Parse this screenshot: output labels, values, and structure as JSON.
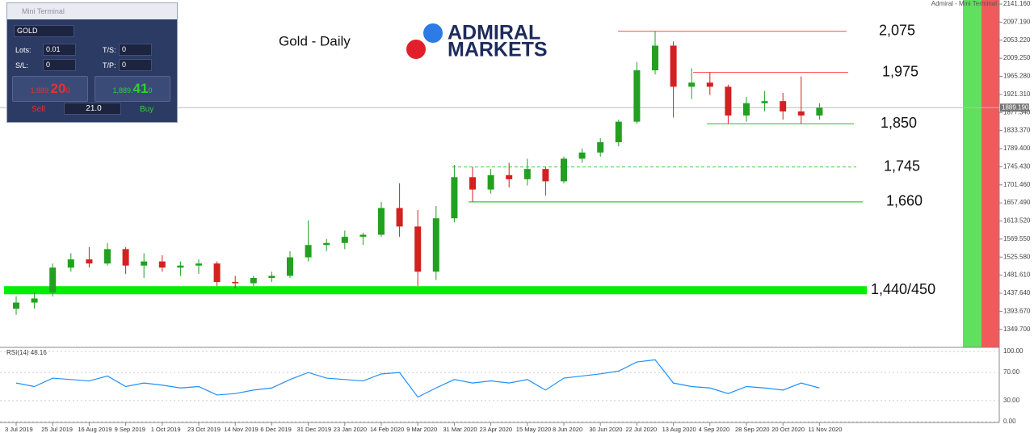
{
  "chart_data": {
    "type": "candlestick",
    "title": "Gold - Daily",
    "corner_caption": "Admiral - Mini Terminal",
    "categories": [
      "3 Jul 2019",
      null,
      "25 Jul 2019",
      null,
      "16 Aug 2019",
      null,
      "9 Sep 2019",
      null,
      "1 Oct 2019",
      null,
      "23 Oct 2019",
      null,
      "14 Nov 2019",
      null,
      "6 Dec 2019",
      null,
      "31 Dec 2019",
      null,
      "23 Jan 2020",
      null,
      "14 Feb 2020",
      null,
      "9 Mar 2020",
      null,
      "31 Mar 2020",
      null,
      "23 Apr 2020",
      null,
      "15 May 2020",
      null,
      "8 Jun 2020",
      null,
      "30 Jun 2020",
      null,
      "22 Jul 2020",
      null,
      "13 Aug 2020",
      null,
      "4 Sep 2020",
      null,
      "28 Sep 2020",
      null,
      "20 Oct 2020",
      null,
      "11 Nov 2020"
    ],
    "open": [
      1400,
      1415,
      1440,
      1500,
      1520,
      1510,
      1545,
      1505,
      1515,
      1500,
      1505,
      1510,
      1465,
      1462,
      1475,
      1480,
      1525,
      1555,
      1560,
      1575,
      1580,
      1645,
      1600,
      1490,
      1620,
      1720,
      1690,
      1725,
      1715,
      1740,
      1710,
      1765,
      1780,
      1805,
      1855,
      1980,
      2040,
      1940,
      1950,
      1940,
      1870,
      1900,
      1905,
      1880,
      1870
    ],
    "high": [
      1430,
      1440,
      1510,
      1535,
      1550,
      1560,
      1550,
      1535,
      1530,
      1515,
      1520,
      1515,
      1480,
      1480,
      1490,
      1540,
      1615,
      1570,
      1590,
      1585,
      1660,
      1705,
      1640,
      1650,
      1750,
      1745,
      1740,
      1755,
      1765,
      1745,
      1770,
      1790,
      1815,
      1860,
      2000,
      2075,
      2050,
      1985,
      1975,
      1945,
      1915,
      1930,
      1925,
      1965,
      1900
    ],
    "low": [
      1385,
      1400,
      1430,
      1490,
      1500,
      1505,
      1485,
      1475,
      1490,
      1480,
      1485,
      1455,
      1450,
      1455,
      1465,
      1475,
      1515,
      1540,
      1545,
      1555,
      1575,
      1575,
      1455,
      1470,
      1610,
      1660,
      1680,
      1695,
      1700,
      1675,
      1705,
      1755,
      1770,
      1795,
      1850,
      1970,
      1865,
      1910,
      1920,
      1850,
      1855,
      1880,
      1860,
      1850,
      1860
    ],
    "close": [
      1415,
      1425,
      1500,
      1520,
      1510,
      1545,
      1505,
      1515,
      1500,
      1505,
      1510,
      1465,
      1462,
      1475,
      1480,
      1525,
      1555,
      1560,
      1575,
      1580,
      1645,
      1600,
      1490,
      1620,
      1720,
      1690,
      1725,
      1715,
      1740,
      1710,
      1765,
      1780,
      1805,
      1855,
      1980,
      2040,
      1940,
      1950,
      1940,
      1870,
      1900,
      1905,
      1880,
      1870,
      1889
    ],
    "up_color": "#22a022",
    "down_color": "#d42020",
    "ylim": [
      1306,
      2151
    ],
    "yticks": [
      {
        "value": 2141.16,
        "label": "2141.160"
      },
      {
        "value": 2097.19,
        "label": "2097.190"
      },
      {
        "value": 2053.22,
        "label": "2053.220"
      },
      {
        "value": 2009.25,
        "label": "2009.250"
      },
      {
        "value": 1965.28,
        "label": "1965.280"
      },
      {
        "value": 1921.31,
        "label": "1921.310"
      },
      {
        "value": 1877.34,
        "label": "1877.340"
      },
      {
        "value": 1833.37,
        "label": "1833.370"
      },
      {
        "value": 1789.4,
        "label": "1789.400"
      },
      {
        "value": 1745.43,
        "label": "1745.430"
      },
      {
        "value": 1701.46,
        "label": "1701.460"
      },
      {
        "value": 1657.49,
        "label": "1657.490"
      },
      {
        "value": 1613.52,
        "label": "1613.520"
      },
      {
        "value": 1569.55,
        "label": "1569.550"
      },
      {
        "value": 1525.58,
        "label": "1525.580"
      },
      {
        "value": 1481.61,
        "label": "1481.610"
      },
      {
        "value": 1437.64,
        "label": "1437.640"
      },
      {
        "value": 1393.67,
        "label": "1393.670"
      },
      {
        "value": 1349.7,
        "label": "1349.700"
      }
    ],
    "last_price": {
      "value": 1889.19,
      "label": "1889.190"
    },
    "levels": [
      {
        "value": 2075,
        "label": "2,075",
        "color": "#ff5a5a",
        "line_style": "solid"
      },
      {
        "value": 1975,
        "label": "1,975",
        "color": "#ff5a5a",
        "line_style": "solid"
      },
      {
        "value": 1850,
        "label": "1,850",
        "color": "#33cc33",
        "line_style": "solid"
      },
      {
        "value": 1745,
        "label": "1,745",
        "color": "#66dd66",
        "line_style": "dashed"
      },
      {
        "value": 1660,
        "label": "1,660",
        "color": "#33cc33",
        "line_style": "solid"
      },
      {
        "value": 1445,
        "label": "1,440/450",
        "color": "#00ee00",
        "line_style": "band"
      }
    ],
    "rsi": {
      "title": "RSI(14) 48.16",
      "color": "#1e90ff",
      "values": [
        55,
        50,
        62,
        60,
        58,
        65,
        50,
        55,
        52,
        48,
        50,
        38,
        40,
        45,
        48,
        60,
        70,
        62,
        60,
        58,
        68,
        70,
        35,
        48,
        60,
        55,
        58,
        55,
        60,
        45,
        62,
        65,
        68,
        72,
        85,
        88,
        55,
        50,
        48,
        40,
        50,
        48,
        45,
        55,
        48
      ],
      "ylim": [
        0,
        100
      ],
      "yticks": [
        {
          "value": 100,
          "label": "100.00"
        },
        {
          "value": 70,
          "label": "70.00"
        },
        {
          "value": 30,
          "label": "30.00"
        },
        {
          "value": 0,
          "label": "0.00"
        }
      ]
    }
  },
  "logo": {
    "line1": "ADMIRAL",
    "line2": "MARKETS"
  },
  "terminal": {
    "title": "Mini Terminal",
    "symbol": "GOLD",
    "lots_label": "Lots:",
    "lots": "0.01",
    "ts_label": "T/S:",
    "ts": "0",
    "sl_label": "S/L:",
    "sl": "0",
    "tp_label": "T/P:",
    "tp": "0",
    "sell_prefix": "1,889.",
    "sell_big": "20",
    "sell_suffix": "0",
    "buy_prefix": "1,889.",
    "buy_big": "41",
    "buy_suffix": "0",
    "sell": "Sell",
    "volume": "21.0",
    "buy": "Buy"
  }
}
